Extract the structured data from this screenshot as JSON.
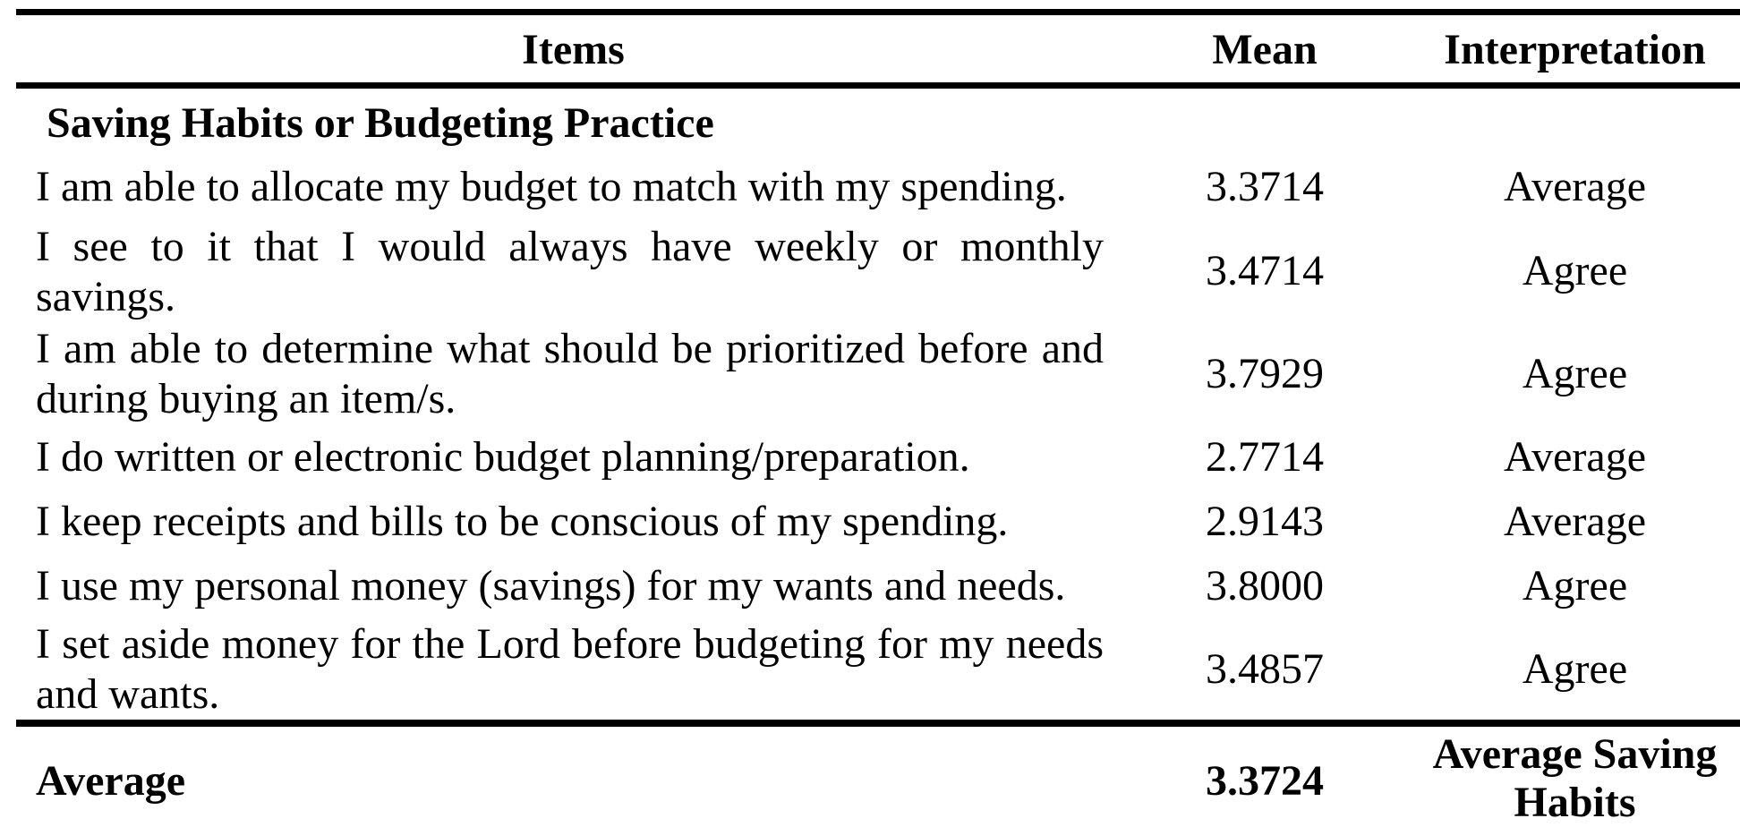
{
  "table": {
    "headers": {
      "items": "Items",
      "mean": "Mean",
      "interpretation": "Interpretation"
    },
    "section_title": "Saving Habits or Budgeting Practice",
    "rows": [
      {
        "item": "I am able to allocate my budget to match with my spending.",
        "mean": "3.3714",
        "interpretation": "Average"
      },
      {
        "item": "I see to it that I would always have weekly or monthly savings.",
        "mean": "3.4714",
        "interpretation": "Agree"
      },
      {
        "item": "I am able to determine what should be prioritized before and during buying an item/s.",
        "mean": "3.7929",
        "interpretation": "Agree"
      },
      {
        "item": "I do written or electronic budget planning/preparation.",
        "mean": "2.7714",
        "interpretation": "Average"
      },
      {
        "item": "I keep receipts and bills to be conscious of my spending.",
        "mean": "2.9143",
        "interpretation": "Average"
      },
      {
        "item": "I use my personal money (savings) for my wants and needs.",
        "mean": "3.8000",
        "interpretation": "Agree"
      },
      {
        "item": "I set aside money for the Lord before budgeting for my needs and wants.",
        "mean": "3.4857",
        "interpretation": "Agree"
      }
    ],
    "total": {
      "label": "Average",
      "mean": "3.3724",
      "interpretation": "Average Saving Habits"
    }
  }
}
